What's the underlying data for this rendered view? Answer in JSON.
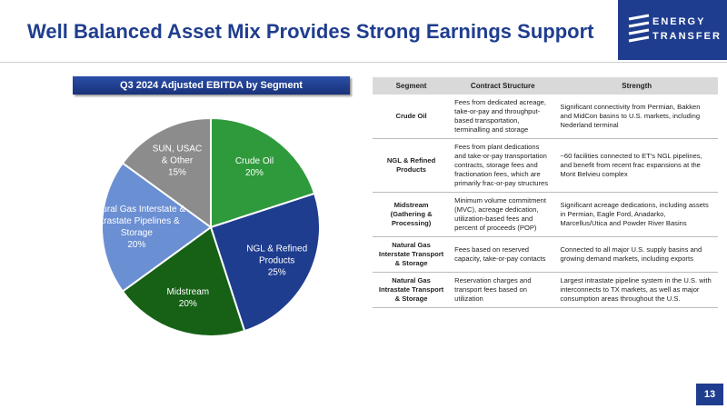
{
  "header": {
    "title": "Well Balanced Asset Mix Provides Strong Earnings Support"
  },
  "logo": {
    "line1": "ENERGY",
    "line2": "TRANSFER"
  },
  "chart_data": {
    "type": "pie",
    "title": "Q3 2024 Adjusted EBITDA by Segment",
    "categories": [
      "Crude Oil",
      "NGL & Refined Products",
      "Midstream",
      "Natural Gas Interstate & Intrastate Pipelines & Storage",
      "SUN, USAC & Other"
    ],
    "values": [
      20,
      25,
      20,
      20,
      15
    ],
    "value_labels": [
      "20%",
      "25%",
      "20%",
      "20%",
      "15%"
    ],
    "colors": [
      "#2f9a3c",
      "#1f3d8f",
      "#176117",
      "#6b8fd3",
      "#8c8c8c"
    ]
  },
  "table": {
    "columns": [
      "Segment",
      "Contract Structure",
      "Strength"
    ],
    "rows": [
      [
        "Crude Oil",
        "Fees from dedicated acreage, take-or-pay and throughput-based transportation, terminalling and storage",
        "Significant connectivity from Permian, Bakken and MidCon basins to U.S. markets, including Nederland terminal"
      ],
      [
        "NGL & Refined Products",
        "Fees from plant dedications and take-or-pay transportation contracts, storage fees and fractionation fees, which are primarily frac-or-pay structures",
        "~60 facilities connected to ET's NGL pipelines, and benefit from recent frac expansions at the Mont Belvieu complex"
      ],
      [
        "Midstream (Gathering & Processing)",
        "Minimum volume commitment (MVC), acreage dedication, utilization-based fees and percent of proceeds (POP)",
        "Significant acreage dedications, including assets in Permian, Eagle Ford, Anadarko, Marcellus/Utica and Powder River Basins"
      ],
      [
        "Natural Gas Interstate Transport & Storage",
        "Fees based on reserved capacity, take-or-pay contacts",
        "Connected to all major U.S. supply basins and growing demand markets, including exports"
      ],
      [
        "Natural Gas Intrastate Transport & Storage",
        "Reservation charges and transport fees based on utilization",
        "Largest intrastate pipeline system in the U.S. with interconnects to TX markets, as well as major consumption areas throughout the U.S."
      ]
    ]
  },
  "footer": {
    "page": "13"
  }
}
